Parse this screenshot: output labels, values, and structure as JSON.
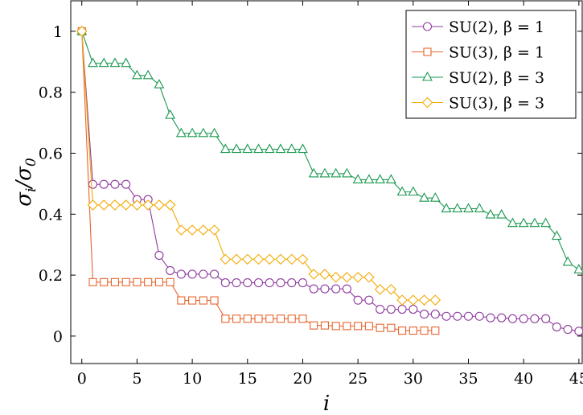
{
  "chart_data": {
    "type": "line",
    "xlabel": "i",
    "ylabel": "σi/σ0",
    "xlim": [
      -1,
      45.3
    ],
    "ylim": [
      -0.09,
      1.1
    ],
    "xticks": [
      0,
      5,
      10,
      15,
      20,
      25,
      30,
      35,
      40,
      45
    ],
    "yticks": [
      0,
      0.2,
      0.4,
      0.6,
      0.8,
      1
    ],
    "ytick_labels": [
      "0",
      "0.2",
      "0.4",
      "0.6",
      "0.8",
      "1"
    ],
    "grid": false,
    "legend_position": "top-right",
    "series": [
      {
        "name": "SU(2),  β = 1",
        "color": "#8e3b9e",
        "marker": "circle",
        "x": [
          0,
          1,
          2,
          3,
          4,
          5,
          6,
          7,
          8,
          9,
          10,
          11,
          12,
          13,
          14,
          15,
          16,
          17,
          18,
          19,
          20,
          21,
          22,
          23,
          24,
          25,
          26,
          27,
          28,
          29,
          30,
          31,
          32,
          33,
          34,
          35,
          36,
          37,
          38,
          39,
          40,
          41,
          42,
          43,
          44,
          45
        ],
        "values": [
          1.0,
          0.498,
          0.498,
          0.498,
          0.498,
          0.448,
          0.448,
          0.265,
          0.215,
          0.203,
          0.203,
          0.203,
          0.203,
          0.175,
          0.175,
          0.175,
          0.175,
          0.175,
          0.175,
          0.175,
          0.175,
          0.155,
          0.155,
          0.155,
          0.155,
          0.118,
          0.118,
          0.088,
          0.088,
          0.088,
          0.088,
          0.072,
          0.072,
          0.065,
          0.065,
          0.065,
          0.065,
          0.06,
          0.06,
          0.057,
          0.057,
          0.057,
          0.057,
          0.03,
          0.022,
          0.016
        ]
      },
      {
        "name": "SU(3),  β = 1",
        "color": "#e8642d",
        "marker": "square",
        "x": [
          0,
          1,
          2,
          3,
          4,
          5,
          6,
          7,
          8,
          9,
          10,
          11,
          12,
          13,
          14,
          15,
          16,
          17,
          18,
          19,
          20,
          21,
          22,
          23,
          24,
          25,
          26,
          27,
          28,
          29,
          30,
          31,
          32
        ],
        "values": [
          1.0,
          0.177,
          0.177,
          0.177,
          0.177,
          0.177,
          0.177,
          0.177,
          0.177,
          0.117,
          0.117,
          0.117,
          0.117,
          0.057,
          0.057,
          0.057,
          0.057,
          0.057,
          0.057,
          0.057,
          0.057,
          0.035,
          0.035,
          0.033,
          0.033,
          0.033,
          0.033,
          0.027,
          0.027,
          0.018,
          0.018,
          0.018,
          0.018
        ]
      },
      {
        "name": "SU(2),  β = 3",
        "color": "#1a9850",
        "marker": "triangle",
        "x": [
          0,
          1,
          2,
          3,
          4,
          5,
          6,
          7,
          8,
          9,
          10,
          11,
          12,
          13,
          14,
          15,
          16,
          17,
          18,
          19,
          20,
          21,
          22,
          23,
          24,
          25,
          26,
          27,
          28,
          29,
          30,
          31,
          32,
          33,
          34,
          35,
          36,
          37,
          38,
          39,
          40,
          41,
          42,
          43,
          44,
          45
        ],
        "values": [
          1.0,
          0.895,
          0.895,
          0.895,
          0.895,
          0.855,
          0.855,
          0.825,
          0.725,
          0.665,
          0.665,
          0.665,
          0.665,
          0.613,
          0.613,
          0.613,
          0.613,
          0.613,
          0.613,
          0.613,
          0.613,
          0.533,
          0.533,
          0.533,
          0.533,
          0.513,
          0.513,
          0.513,
          0.513,
          0.473,
          0.473,
          0.453,
          0.453,
          0.418,
          0.418,
          0.418,
          0.418,
          0.398,
          0.398,
          0.37,
          0.37,
          0.37,
          0.37,
          0.328,
          0.243,
          0.218
        ]
      },
      {
        "name": "SU(3),  β = 3",
        "color": "#f2a900",
        "marker": "diamond",
        "x": [
          0,
          1,
          2,
          3,
          4,
          5,
          6,
          7,
          8,
          9,
          10,
          11,
          12,
          13,
          14,
          15,
          16,
          17,
          18,
          19,
          20,
          21,
          22,
          23,
          24,
          25,
          26,
          27,
          28,
          29,
          30,
          31,
          32
        ],
        "values": [
          1.0,
          0.43,
          0.43,
          0.43,
          0.43,
          0.43,
          0.43,
          0.43,
          0.43,
          0.348,
          0.348,
          0.348,
          0.348,
          0.252,
          0.252,
          0.252,
          0.252,
          0.252,
          0.252,
          0.252,
          0.252,
          0.203,
          0.203,
          0.193,
          0.193,
          0.193,
          0.193,
          0.153,
          0.153,
          0.118,
          0.118,
          0.118,
          0.118
        ]
      }
    ]
  }
}
